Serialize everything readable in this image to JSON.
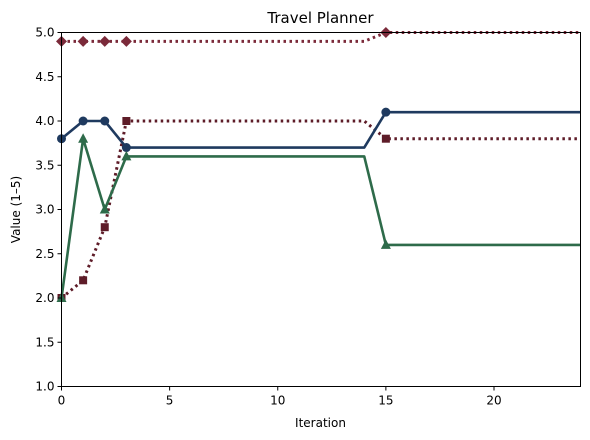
{
  "chart_data": {
    "type": "line",
    "title": "Travel Planner",
    "xlabel": "Iteration",
    "ylabel": "Value (1–5)",
    "xlim": [
      0,
      24
    ],
    "ylim": [
      1.0,
      5.0
    ],
    "xticks": [
      0,
      5,
      10,
      15,
      20
    ],
    "xtick_labels": [
      "0",
      "5",
      "10",
      "15",
      "20"
    ],
    "yticks": [
      1.0,
      1.5,
      2.0,
      2.5,
      3.0,
      3.5,
      4.0,
      4.5,
      5.0
    ],
    "ytick_labels": [
      "1.0",
      "1.5",
      "2.0",
      "2.5",
      "3.0",
      "3.5",
      "4.0",
      "4.5",
      "5.0"
    ],
    "grid": false,
    "legend": "none",
    "series": [
      {
        "color": "#7b2a3a",
        "line_style": "dotted",
        "marker": "diamond",
        "points": [
          {
            "x": 0,
            "y": 4.9
          },
          {
            "x": 1,
            "y": 4.9
          },
          {
            "x": 2,
            "y": 4.9
          },
          {
            "x": 3,
            "y": 4.9
          },
          {
            "x": 14,
            "y": 4.9
          },
          {
            "x": 15,
            "y": 5.0
          },
          {
            "x": 24,
            "y": 5.0
          }
        ],
        "marker_x": [
          0,
          1,
          2,
          3,
          15
        ]
      },
      {
        "color": "#5e1c28",
        "line_style": "dotted",
        "marker": "square",
        "points": [
          {
            "x": 0,
            "y": 2.0
          },
          {
            "x": 1,
            "y": 2.2
          },
          {
            "x": 2,
            "y": 2.8
          },
          {
            "x": 3,
            "y": 4.0
          },
          {
            "x": 14,
            "y": 4.0
          },
          {
            "x": 15,
            "y": 3.8
          },
          {
            "x": 24,
            "y": 3.8
          }
        ],
        "marker_x": [
          0,
          1,
          2,
          3,
          15
        ]
      },
      {
        "color": "#1f3a5f",
        "line_style": "solid",
        "marker": "circle",
        "points": [
          {
            "x": 0,
            "y": 3.8
          },
          {
            "x": 1,
            "y": 4.0
          },
          {
            "x": 2,
            "y": 4.0
          },
          {
            "x": 3,
            "y": 3.7
          },
          {
            "x": 14,
            "y": 3.7
          },
          {
            "x": 15,
            "y": 4.1
          },
          {
            "x": 24,
            "y": 4.1
          }
        ],
        "marker_x": [
          0,
          1,
          2,
          3,
          15
        ]
      },
      {
        "color": "#2e6b4a",
        "line_style": "solid",
        "marker": "triangle",
        "points": [
          {
            "x": 0,
            "y": 2.0
          },
          {
            "x": 1,
            "y": 3.8
          },
          {
            "x": 2,
            "y": 3.0
          },
          {
            "x": 3,
            "y": 3.6
          },
          {
            "x": 14,
            "y": 3.6
          },
          {
            "x": 15,
            "y": 2.6
          },
          {
            "x": 24,
            "y": 2.6
          }
        ],
        "marker_x": [
          0,
          1,
          2,
          3,
          15
        ]
      }
    ]
  }
}
